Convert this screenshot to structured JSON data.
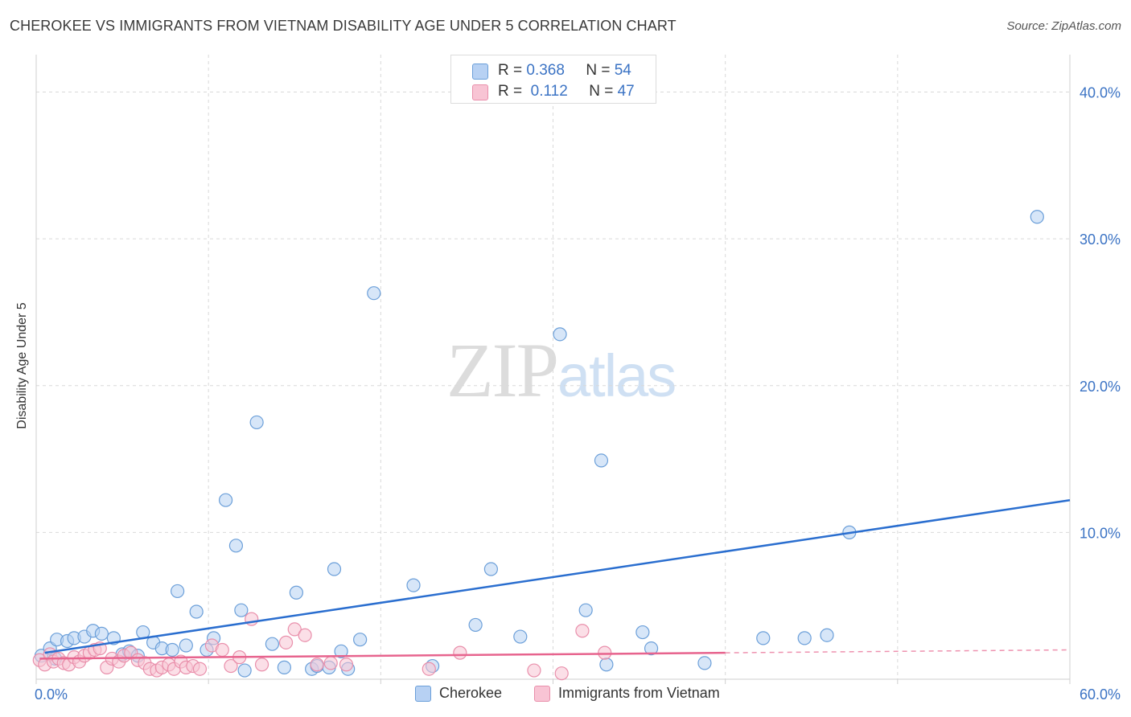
{
  "header": {
    "title": "CHEROKEE VS IMMIGRANTS FROM VIETNAM DISABILITY AGE UNDER 5 CORRELATION CHART",
    "source": "Source: ZipAtlas.com"
  },
  "watermark": {
    "zip": "ZIP",
    "atlas": "atlas"
  },
  "colors": {
    "blue_fill": "#b7d1f3",
    "blue_stroke": "#6b9fd9",
    "blue_line": "#2a6ecf",
    "pink_fill": "#f8c4d4",
    "pink_stroke": "#e98fab",
    "pink_line": "#e7648e",
    "tick_text": "#3b73c4",
    "grid": "#d9d9d9"
  },
  "stats_legend": {
    "rows": [
      {
        "r_label": "R =",
        "r_value": "0.368",
        "n_label": "N =",
        "n_value": "54"
      },
      {
        "r_label": "R =",
        "r_value": "0.112",
        "n_label": "N =",
        "n_value": "47"
      }
    ]
  },
  "chart_data": {
    "type": "scatter",
    "title": "CHEROKEE VS IMMIGRANTS FROM VIETNAM DISABILITY AGE UNDER 5 CORRELATION CHART",
    "xlabel": "",
    "ylabel": "Disability Age Under 5",
    "xlim": [
      0,
      60
    ],
    "ylim": [
      0,
      42
    ],
    "x_tick_labels": [
      {
        "value": 0,
        "label": "0.0%"
      },
      {
        "value": 60,
        "label": "60.0%"
      }
    ],
    "y_tick_labels": [
      {
        "value": 10,
        "label": "10.0%"
      },
      {
        "value": 20,
        "label": "20.0%"
      },
      {
        "value": 30,
        "label": "30.0%"
      },
      {
        "value": 40,
        "label": "40.0%"
      }
    ],
    "grid": true,
    "series": [
      {
        "name": "Cherokee",
        "color": "#b7d1f3",
        "trend": {
          "x": [
            0.5,
            60
          ],
          "y": [
            1.8,
            12.2
          ],
          "solid_until": 60
        },
        "points": [
          [
            0.3,
            1.6
          ],
          [
            0.8,
            2.1
          ],
          [
            1.1,
            1.4
          ],
          [
            1.2,
            2.7
          ],
          [
            1.8,
            2.6
          ],
          [
            2.2,
            2.8
          ],
          [
            2.8,
            2.9
          ],
          [
            3.3,
            3.3
          ],
          [
            3.8,
            3.1
          ],
          [
            4.5,
            2.8
          ],
          [
            5.0,
            1.7
          ],
          [
            5.4,
            1.9
          ],
          [
            5.9,
            1.6
          ],
          [
            6.2,
            3.2
          ],
          [
            6.8,
            2.5
          ],
          [
            7.3,
            2.1
          ],
          [
            7.9,
            2.0
          ],
          [
            8.2,
            6.0
          ],
          [
            8.7,
            2.3
          ],
          [
            9.3,
            4.6
          ],
          [
            9.9,
            2.0
          ],
          [
            10.3,
            2.8
          ],
          [
            11.0,
            12.2
          ],
          [
            11.6,
            9.1
          ],
          [
            11.9,
            4.7
          ],
          [
            12.1,
            0.6
          ],
          [
            12.8,
            17.5
          ],
          [
            13.7,
            2.4
          ],
          [
            14.4,
            0.8
          ],
          [
            15.1,
            5.9
          ],
          [
            16.0,
            0.7
          ],
          [
            16.3,
            0.9
          ],
          [
            17.0,
            0.8
          ],
          [
            17.3,
            7.5
          ],
          [
            17.7,
            1.9
          ],
          [
            18.1,
            0.7
          ],
          [
            18.8,
            2.7
          ],
          [
            19.6,
            26.3
          ],
          [
            21.9,
            6.4
          ],
          [
            23.0,
            0.9
          ],
          [
            25.5,
            3.7
          ],
          [
            26.4,
            7.5
          ],
          [
            28.1,
            2.9
          ],
          [
            30.4,
            23.5
          ],
          [
            31.9,
            4.7
          ],
          [
            32.8,
            14.9
          ],
          [
            33.1,
            1.0
          ],
          [
            35.2,
            3.2
          ],
          [
            35.7,
            2.1
          ],
          [
            38.8,
            1.1
          ],
          [
            42.2,
            2.8
          ],
          [
            44.6,
            2.8
          ],
          [
            45.9,
            3.0
          ],
          [
            47.2,
            10.0
          ],
          [
            58.1,
            31.5
          ]
        ]
      },
      {
        "name": "Immigrants from Vietnam",
        "color": "#f8c4d4",
        "trend": {
          "x": [
            0.2,
            60
          ],
          "y": [
            1.4,
            2.0
          ],
          "solid_until": 40
        },
        "points": [
          [
            0.2,
            1.3
          ],
          [
            0.5,
            1.0
          ],
          [
            0.8,
            1.7
          ],
          [
            1.0,
            1.2
          ],
          [
            1.3,
            1.4
          ],
          [
            1.6,
            1.1
          ],
          [
            1.9,
            1.0
          ],
          [
            2.2,
            1.5
          ],
          [
            2.5,
            1.2
          ],
          [
            2.8,
            1.6
          ],
          [
            3.1,
            1.8
          ],
          [
            3.4,
            2.0
          ],
          [
            3.7,
            2.1
          ],
          [
            4.1,
            0.8
          ],
          [
            4.4,
            1.4
          ],
          [
            4.8,
            1.2
          ],
          [
            5.1,
            1.6
          ],
          [
            5.5,
            1.8
          ],
          [
            5.9,
            1.3
          ],
          [
            6.3,
            1.1
          ],
          [
            6.6,
            0.7
          ],
          [
            7.0,
            0.6
          ],
          [
            7.3,
            0.8
          ],
          [
            7.7,
            1.0
          ],
          [
            8.0,
            0.7
          ],
          [
            8.4,
            1.2
          ],
          [
            8.7,
            0.8
          ],
          [
            9.1,
            0.9
          ],
          [
            9.5,
            0.7
          ],
          [
            10.2,
            2.3
          ],
          [
            10.8,
            2.0
          ],
          [
            11.3,
            0.9
          ],
          [
            11.8,
            1.5
          ],
          [
            12.5,
            4.1
          ],
          [
            13.1,
            1.0
          ],
          [
            14.5,
            2.5
          ],
          [
            15.0,
            3.4
          ],
          [
            15.6,
            3.0
          ],
          [
            16.3,
            1.0
          ],
          [
            17.1,
            1.1
          ],
          [
            18.0,
            1.0
          ],
          [
            22.8,
            0.7
          ],
          [
            24.6,
            1.8
          ],
          [
            28.9,
            0.6
          ],
          [
            30.5,
            0.4
          ],
          [
            31.7,
            3.3
          ],
          [
            33.0,
            1.8
          ]
        ]
      }
    ],
    "legend": [
      "Cherokee",
      "Immigrants from Vietnam"
    ]
  }
}
